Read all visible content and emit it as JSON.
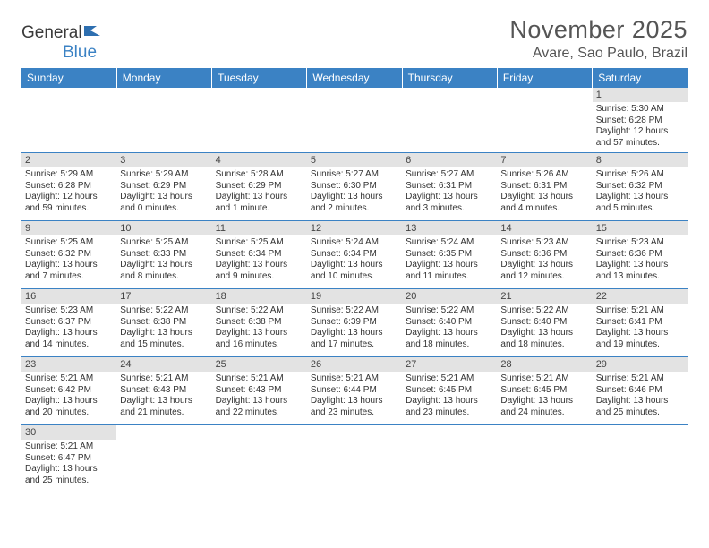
{
  "logo": {
    "text_general": "General",
    "text_blue": "Blue"
  },
  "title": "November 2025",
  "location": "Avare, Sao Paulo, Brazil",
  "colors": {
    "header_bg": "#3b82c4",
    "header_fg": "#ffffff",
    "daynum_bg": "#e3e3e3",
    "rule": "#3b82c4",
    "text": "#333333"
  },
  "weekdays": [
    "Sunday",
    "Monday",
    "Tuesday",
    "Wednesday",
    "Thursday",
    "Friday",
    "Saturday"
  ],
  "weeks": [
    [
      null,
      null,
      null,
      null,
      null,
      null,
      {
        "n": "1",
        "sunrise": "5:30 AM",
        "sunset": "6:28 PM",
        "daylight": "12 hours and 57 minutes."
      }
    ],
    [
      {
        "n": "2",
        "sunrise": "5:29 AM",
        "sunset": "6:28 PM",
        "daylight": "12 hours and 59 minutes."
      },
      {
        "n": "3",
        "sunrise": "5:29 AM",
        "sunset": "6:29 PM",
        "daylight": "13 hours and 0 minutes."
      },
      {
        "n": "4",
        "sunrise": "5:28 AM",
        "sunset": "6:29 PM",
        "daylight": "13 hours and 1 minute."
      },
      {
        "n": "5",
        "sunrise": "5:27 AM",
        "sunset": "6:30 PM",
        "daylight": "13 hours and 2 minutes."
      },
      {
        "n": "6",
        "sunrise": "5:27 AM",
        "sunset": "6:31 PM",
        "daylight": "13 hours and 3 minutes."
      },
      {
        "n": "7",
        "sunrise": "5:26 AM",
        "sunset": "6:31 PM",
        "daylight": "13 hours and 4 minutes."
      },
      {
        "n": "8",
        "sunrise": "5:26 AM",
        "sunset": "6:32 PM",
        "daylight": "13 hours and 5 minutes."
      }
    ],
    [
      {
        "n": "9",
        "sunrise": "5:25 AM",
        "sunset": "6:32 PM",
        "daylight": "13 hours and 7 minutes."
      },
      {
        "n": "10",
        "sunrise": "5:25 AM",
        "sunset": "6:33 PM",
        "daylight": "13 hours and 8 minutes."
      },
      {
        "n": "11",
        "sunrise": "5:25 AM",
        "sunset": "6:34 PM",
        "daylight": "13 hours and 9 minutes."
      },
      {
        "n": "12",
        "sunrise": "5:24 AM",
        "sunset": "6:34 PM",
        "daylight": "13 hours and 10 minutes."
      },
      {
        "n": "13",
        "sunrise": "5:24 AM",
        "sunset": "6:35 PM",
        "daylight": "13 hours and 11 minutes."
      },
      {
        "n": "14",
        "sunrise": "5:23 AM",
        "sunset": "6:36 PM",
        "daylight": "13 hours and 12 minutes."
      },
      {
        "n": "15",
        "sunrise": "5:23 AM",
        "sunset": "6:36 PM",
        "daylight": "13 hours and 13 minutes."
      }
    ],
    [
      {
        "n": "16",
        "sunrise": "5:23 AM",
        "sunset": "6:37 PM",
        "daylight": "13 hours and 14 minutes."
      },
      {
        "n": "17",
        "sunrise": "5:22 AM",
        "sunset": "6:38 PM",
        "daylight": "13 hours and 15 minutes."
      },
      {
        "n": "18",
        "sunrise": "5:22 AM",
        "sunset": "6:38 PM",
        "daylight": "13 hours and 16 minutes."
      },
      {
        "n": "19",
        "sunrise": "5:22 AM",
        "sunset": "6:39 PM",
        "daylight": "13 hours and 17 minutes."
      },
      {
        "n": "20",
        "sunrise": "5:22 AM",
        "sunset": "6:40 PM",
        "daylight": "13 hours and 18 minutes."
      },
      {
        "n": "21",
        "sunrise": "5:22 AM",
        "sunset": "6:40 PM",
        "daylight": "13 hours and 18 minutes."
      },
      {
        "n": "22",
        "sunrise": "5:21 AM",
        "sunset": "6:41 PM",
        "daylight": "13 hours and 19 minutes."
      }
    ],
    [
      {
        "n": "23",
        "sunrise": "5:21 AM",
        "sunset": "6:42 PM",
        "daylight": "13 hours and 20 minutes."
      },
      {
        "n": "24",
        "sunrise": "5:21 AM",
        "sunset": "6:43 PM",
        "daylight": "13 hours and 21 minutes."
      },
      {
        "n": "25",
        "sunrise": "5:21 AM",
        "sunset": "6:43 PM",
        "daylight": "13 hours and 22 minutes."
      },
      {
        "n": "26",
        "sunrise": "5:21 AM",
        "sunset": "6:44 PM",
        "daylight": "13 hours and 23 minutes."
      },
      {
        "n": "27",
        "sunrise": "5:21 AM",
        "sunset": "6:45 PM",
        "daylight": "13 hours and 23 minutes."
      },
      {
        "n": "28",
        "sunrise": "5:21 AM",
        "sunset": "6:45 PM",
        "daylight": "13 hours and 24 minutes."
      },
      {
        "n": "29",
        "sunrise": "5:21 AM",
        "sunset": "6:46 PM",
        "daylight": "13 hours and 25 minutes."
      }
    ],
    [
      {
        "n": "30",
        "sunrise": "5:21 AM",
        "sunset": "6:47 PM",
        "daylight": "13 hours and 25 minutes."
      },
      null,
      null,
      null,
      null,
      null,
      null
    ]
  ],
  "labels": {
    "sunrise_prefix": "Sunrise: ",
    "sunset_prefix": "Sunset: ",
    "daylight_prefix": "Daylight: "
  }
}
